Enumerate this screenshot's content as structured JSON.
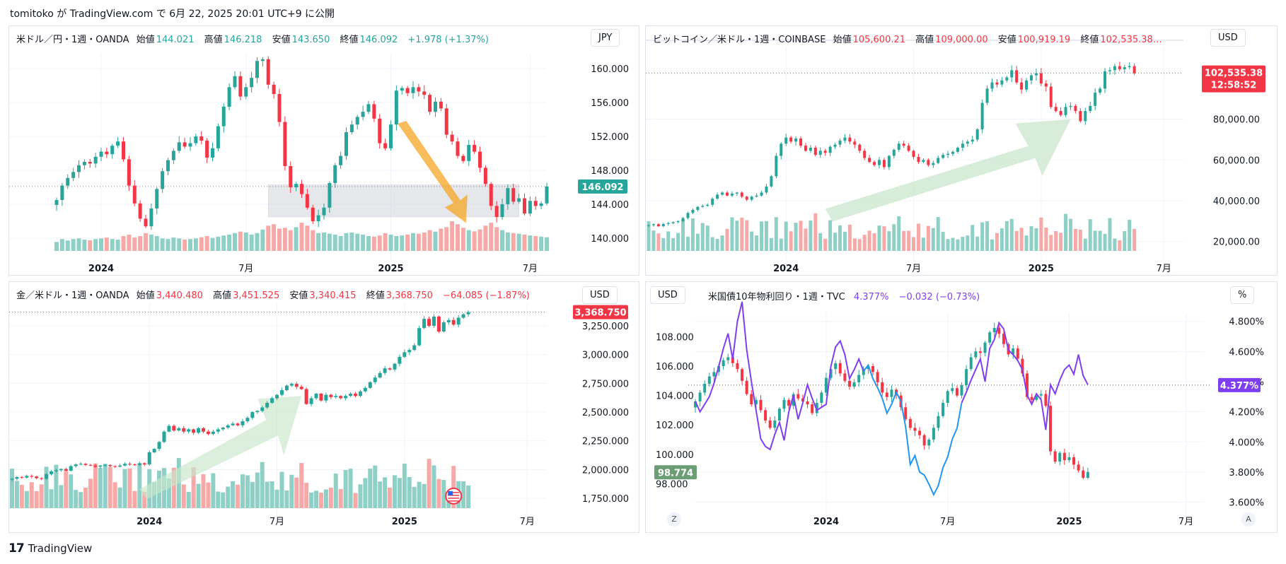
{
  "header": {
    "published": "tomitoko が TradingView.com で 6月 22, 2025 20:01 UTC+9 に公開"
  },
  "footer": {
    "logo": "17",
    "brand": "TradingView"
  },
  "colors": {
    "up": "#26a69a",
    "down": "#f23645",
    "volume_up": "#8fd0c6",
    "volume_down": "#f7a9a7",
    "zone": "#d1d4dc",
    "arrow_orange": "#f5a623",
    "arrow_green": "#c8e6c9",
    "yield_line": "#7e3ff2",
    "yield_line_blue": "#2196f3",
    "dxy_label": "#6c9e75"
  },
  "chart_data": [
    {
      "id": "usdjpy",
      "type": "candlestick",
      "legend": {
        "symbol": "米ドル／円・1週・OANDA",
        "open_l": "始値",
        "open": "144.021",
        "high_l": "高値",
        "high": "146.218",
        "low_l": "安値",
        "low": "143.650",
        "close_l": "終値",
        "close": "146.092",
        "change": "+1.978 (+1.37%)"
      },
      "currency": "JPY",
      "last_label": "146.092",
      "last_value": 146.092,
      "y_ticks": [
        160,
        156,
        152,
        148,
        144,
        140
      ],
      "y_tick_labels": [
        "160.000",
        "156.000",
        "152.000",
        "148.000",
        "144.000",
        "140.000"
      ],
      "ylim": [
        137.5,
        162.5
      ],
      "x_labels": [
        {
          "t": 8,
          "label": "2024"
        },
        {
          "t": 34,
          "label": "7月"
        },
        {
          "t": 60,
          "label": "2025"
        },
        {
          "t": 85,
          "label": "7月"
        }
      ],
      "t_range": [
        -8,
        88
      ],
      "zone": {
        "t0": 38,
        "t1": 83,
        "y0": 142.5,
        "y1": 146.3
      },
      "closes": [
        144.5,
        146.2,
        147.1,
        147.8,
        148.6,
        149.0,
        148.8,
        149.6,
        150.2,
        149.9,
        150.9,
        151.4,
        149.3,
        146.2,
        144.1,
        142.3,
        141.4,
        143.5,
        145.8,
        147.9,
        149.2,
        150.3,
        151.3,
        150.8,
        151.2,
        152.0,
        151.5,
        149.5,
        150.6,
        153.2,
        155.5,
        157.8,
        159.1,
        156.7,
        157.8,
        158.9,
        160.9,
        161.1,
        158.1,
        157.0,
        153.7,
        148.5,
        146.0,
        146.4,
        145.2,
        143.6,
        142.0,
        142.7,
        143.6,
        146.5,
        148.6,
        149.7,
        152.5,
        153.4,
        154.3,
        154.9,
        155.8,
        154.1,
        151.2,
        150.6,
        153.4,
        157.4,
        157.7,
        157.1,
        157.8,
        157.3,
        156.9,
        154.9,
        156.1,
        155.3,
        152.2,
        151.4,
        149.7,
        149.1,
        151.0,
        150.2,
        148.3,
        146.4,
        143.8,
        142.5,
        144.0,
        145.9,
        144.3,
        144.7,
        142.9,
        144.4,
        143.8,
        144.1,
        146.1
      ],
      "volume": [
        0.3,
        0.4,
        0.35,
        0.4,
        0.42,
        0.38,
        0.36,
        0.4,
        0.42,
        0.45,
        0.4,
        0.38,
        0.5,
        0.55,
        0.45,
        0.5,
        0.6,
        0.55,
        0.5,
        0.42,
        0.4,
        0.45,
        0.42,
        0.38,
        0.4,
        0.42,
        0.46,
        0.5,
        0.44,
        0.48,
        0.52,
        0.55,
        0.6,
        0.65,
        0.62,
        0.55,
        0.6,
        0.72,
        0.85,
        0.9,
        0.75,
        0.78,
        0.7,
        0.8,
        0.95,
        0.85,
        0.7,
        0.6,
        0.62,
        0.58,
        0.55,
        0.5,
        0.6,
        0.62,
        0.58,
        0.55,
        0.5,
        0.48,
        0.52,
        0.6,
        0.55,
        0.5,
        0.52,
        0.55,
        0.6,
        0.58,
        0.62,
        0.7,
        0.65,
        0.75,
        0.8,
        1.0,
        0.9,
        0.78,
        0.7,
        0.66,
        0.72,
        0.85,
        0.95,
        0.8,
        0.7,
        0.62,
        0.6,
        0.58,
        0.55,
        0.52,
        0.5,
        0.48,
        0.46
      ]
    },
    {
      "id": "btcusd",
      "type": "candlestick",
      "legend": {
        "symbol": "ビットコイン／米ドル・1週・COINBASE",
        "open_l": "始値",
        "open": "105,600.21",
        "high_l": "高値",
        "high": "109,000.00",
        "low_l": "安値",
        "low": "100,919.19",
        "close_l": "終値",
        "close": "102,535.38…"
      },
      "currency": "USD",
      "last_label": "102,535.38",
      "countdown": "12:58:52",
      "last_value": 102535.38,
      "y_ticks": [
        80000,
        60000,
        40000,
        20000
      ],
      "y_tick_labels": [
        "80,000.00",
        "60,000.00",
        "40,000.00",
        "20,000.00"
      ],
      "ylim": [
        14000,
        118000
      ],
      "x_labels": [
        {
          "t": 28,
          "label": "2024"
        },
        {
          "t": 54,
          "label": "7月"
        },
        {
          "t": 80,
          "label": "2025"
        },
        {
          "t": 105,
          "label": "7月"
        }
      ],
      "t_range": [
        0,
        109
      ],
      "closes": [
        28000,
        28500,
        27500,
        28600,
        29000,
        29500,
        30000,
        31500,
        34000,
        35500,
        37000,
        37500,
        38000,
        41000,
        43000,
        44000,
        42500,
        43500,
        44000,
        42000,
        40500,
        42000,
        42500,
        44000,
        47000,
        52000,
        62000,
        68000,
        71000,
        69000,
        70500,
        67000,
        64500,
        66000,
        62500,
        64500,
        63500,
        66500,
        67500,
        69500,
        71000,
        69000,
        67500,
        64500,
        61000,
        59000,
        57500,
        60000,
        56500,
        62000,
        65000,
        68000,
        67000,
        64500,
        61500,
        59000,
        60000,
        57500,
        58500,
        61000,
        62500,
        63000,
        64000,
        66000,
        68000,
        69000,
        70000,
        75000,
        88000,
        95000,
        98000,
        97000,
        99000,
        100500,
        104000,
        98000,
        94500,
        99000,
        101500,
        102500,
        97500,
        96000,
        86000,
        84000,
        82000,
        86000,
        86500,
        84000,
        79000,
        84000,
        86500,
        93000,
        95000,
        103500,
        104000,
        106000,
        104500,
        105500,
        106000,
        102535
      ]
    },
    {
      "id": "xauusd",
      "type": "candlestick",
      "legend": {
        "symbol": "金／米ドル・1週・OANDA",
        "open_l": "始値",
        "open": "3,440.480",
        "high_l": "高値",
        "high": "3,451.525",
        "low_l": "安値",
        "low": "3,340.415",
        "close_l": "終値",
        "close": "3,368.750",
        "change": "−64.085 (−1.87%)"
      },
      "currency": "USD",
      "last_label": "3,368.750",
      "last_value": 3368.75,
      "y_ticks": [
        3250,
        3000,
        2750,
        2500,
        2250,
        2000,
        1750
      ],
      "y_tick_labels": [
        "3,250.000",
        "3,000.000",
        "2,750.000",
        "2,500.000",
        "2,250.000",
        "2,000.000",
        "1,750.000"
      ],
      "ylim": [
        1640,
        3520
      ],
      "x_labels": [
        {
          "t": 28,
          "label": "2024"
        },
        {
          "t": 54,
          "label": "7月"
        },
        {
          "t": 80,
          "label": "2025"
        },
        {
          "t": 105,
          "label": "7月"
        }
      ],
      "t_range": [
        0,
        109
      ],
      "closes": [
        1920,
        1935,
        1930,
        1945,
        1940,
        1925,
        1920,
        1960,
        1985,
        1995,
        2005,
        1990,
        2030,
        2045,
        2050,
        2040,
        2035,
        2025,
        2035,
        2040,
        2030,
        2025,
        2035,
        2050,
        2045,
        2040,
        2055,
        2045,
        2150,
        2180,
        2240,
        2330,
        2380,
        2340,
        2360,
        2330,
        2350,
        2320,
        2360,
        2330,
        2310,
        2330,
        2350,
        2365,
        2385,
        2400,
        2385,
        2420,
        2450,
        2500,
        2510,
        2540,
        2580,
        2620,
        2650,
        2690,
        2730,
        2745,
        2720,
        2700,
        2570,
        2620,
        2660,
        2600,
        2650,
        2630,
        2640,
        2620,
        2640,
        2660,
        2640,
        2680,
        2710,
        2760,
        2800,
        2840,
        2880,
        2870,
        2920,
        2980,
        3020,
        3040,
        3080,
        3230,
        3310,
        3250,
        3330,
        3200,
        3280,
        3300,
        3260,
        3320,
        3350,
        3369
      ]
    },
    {
      "id": "us10y",
      "type": "candlestick+line",
      "legend": {
        "symbol": "米国債10年物利回り・1週・TVC",
        "value": "4.377%",
        "change": "−0.032 (−0.73%)"
      },
      "currency_left": "USD",
      "currency_right": "%",
      "last_label": "4.377%",
      "left_label": "98.774",
      "corner_left": "Z",
      "corner_right": "A",
      "left_ticks": [
        108,
        106,
        104,
        102,
        100,
        98
      ],
      "left_tick_labels": [
        "108.000",
        "106.000",
        "104.000",
        "102.000",
        "100.000",
        "98.000"
      ],
      "left_ylim": [
        97.2,
        109.8
      ],
      "right_ticks": [
        4.8,
        4.6,
        4.4,
        4.2,
        4.0,
        3.8,
        3.6
      ],
      "right_tick_labels": [
        "4.800%",
        "4.600%",
        "4.400%",
        "4.200%",
        "4.000%",
        "3.800%",
        "3.600%"
      ],
      "right_ylim": [
        3.57,
        4.93
      ],
      "x_labels": [
        {
          "t": 28,
          "label": "2024"
        },
        {
          "t": 54,
          "label": "7月"
        },
        {
          "t": 80,
          "label": "2025"
        },
        {
          "t": 105,
          "label": "7月"
        }
      ],
      "t_range": [
        0,
        109
      ],
      "dxy_closes": [
        103.6,
        104.2,
        104.8,
        105.3,
        105.6,
        106.0,
        106.4,
        106.6,
        106.2,
        105.8,
        105.0,
        104.1,
        103.4,
        103.7,
        103.0,
        102.3,
        101.8,
        102.3,
        103.1,
        103.7,
        103.3,
        104.1,
        103.8,
        103.6,
        103.4,
        102.8,
        103.5,
        104.2,
        105.2,
        105.8,
        106.2,
        105.5,
        105.0,
        104.6,
        104.9,
        105.4,
        105.8,
        106.0,
        105.6,
        104.9,
        104.2,
        103.9,
        104.4,
        104.0,
        103.2,
        102.4,
        101.8,
        101.6,
        101.3,
        100.6,
        101.0,
        101.8,
        102.6,
        103.5,
        104.3,
        104.5,
        104.0,
        104.7,
        105.8,
        106.6,
        107.0,
        106.9,
        107.6,
        108.3,
        108.6,
        108.2,
        107.5,
        106.8,
        107.2,
        106.5,
        105.5,
        103.9,
        103.7,
        104.0,
        104.1,
        103.3,
        100.2,
        99.5,
        100.1,
        99.6,
        99.8,
        99.3,
        98.9,
        98.4,
        98.8
      ],
      "yield_line": [
        4.27,
        4.2,
        4.25,
        4.3,
        4.39,
        4.5,
        4.62,
        4.72,
        4.55,
        4.8,
        4.93,
        4.61,
        4.4,
        4.21,
        4.02,
        3.97,
        3.95,
        4.05,
        4.13,
        4.01,
        4.2,
        4.31,
        4.15,
        4.26,
        4.38,
        4.29,
        4.21,
        4.23,
        4.25,
        4.5,
        4.63,
        4.67,
        4.58,
        4.42,
        4.48,
        4.55,
        4.47,
        4.51,
        4.42,
        4.36,
        4.29,
        4.19,
        4.25,
        4.33,
        4.27,
        4.1,
        3.85,
        3.91,
        3.8,
        3.78,
        3.72,
        3.65,
        3.71,
        3.83,
        3.9,
        4.02,
        4.09,
        4.26,
        4.33,
        4.41,
        4.48,
        4.55,
        4.4,
        4.62,
        4.68,
        4.79,
        4.75,
        4.61,
        4.58,
        4.54,
        4.48,
        4.31,
        4.25,
        4.32,
        4.28,
        4.08,
        4.38,
        4.32,
        4.41,
        4.48,
        4.51,
        4.45,
        4.58,
        4.44,
        4.38
      ]
    }
  ]
}
